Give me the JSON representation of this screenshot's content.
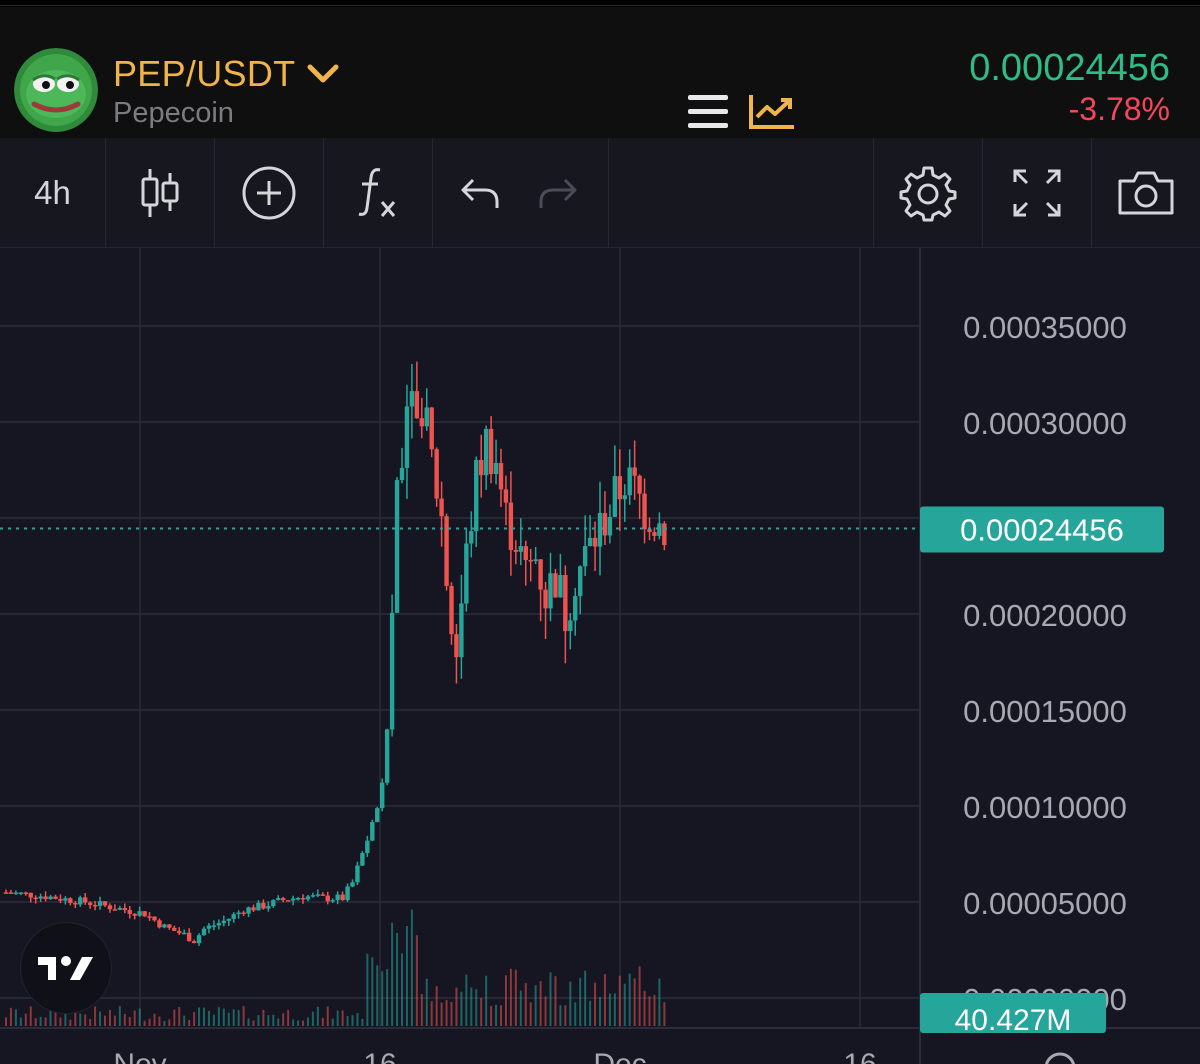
{
  "header": {
    "pair": "PEP/USDT",
    "coin_name": "Pepecoin",
    "last_price": "0.00024456",
    "change_pct": "-3.78%"
  },
  "toolbar": {
    "interval": "4h",
    "icons": [
      "candlestick-icon",
      "add-indicator-icon",
      "function-icon",
      "undo-icon",
      "redo-icon",
      "settings-icon",
      "fullscreen-icon",
      "camera-icon"
    ]
  },
  "colors": {
    "up": "#26a69a",
    "down": "#ef5350",
    "accent": "#f0b44a",
    "price_tag": "#26a69a"
  },
  "chart_data": {
    "type": "candlestick",
    "price_axis": {
      "ticks": [
        "0.00035000",
        "0.00030000",
        "0.00020000",
        "0.00015000",
        "0.00010000",
        "0.00005000",
        "0.00000000"
      ],
      "range": [
        0,
        0.00037
      ],
      "current_price": "0.00024456"
    },
    "volume_label": "40.427M",
    "time_axis_labels": [
      "Nov",
      "16",
      "Dec",
      "16"
    ],
    "grid": true,
    "close_path": [
      [
        0,
        5.5e-05
      ],
      [
        4,
        5.3e-05
      ],
      [
        8,
        5e-05
      ],
      [
        12,
        4.6e-05
      ],
      [
        14,
        4.4e-05
      ],
      [
        16,
        3.7e-05
      ],
      [
        18,
        3.3e-05
      ],
      [
        19,
        3e-05
      ],
      [
        20,
        3.6e-05
      ],
      [
        22,
        4e-05
      ],
      [
        24,
        4.6e-05
      ],
      [
        26,
        4.8e-05
      ],
      [
        28,
        5.1e-05
      ],
      [
        30,
        5.3e-05
      ],
      [
        32,
        5.2e-05
      ],
      [
        34,
        5.2e-05
      ],
      [
        35,
        6e-05
      ],
      [
        36,
        7.5e-05
      ],
      [
        37,
        9e-05
      ],
      [
        38,
        0.00011
      ],
      [
        38.5,
        0.00014
      ],
      [
        39,
        0.0002
      ],
      [
        39.5,
        0.00027
      ],
      [
        40,
        0.00029
      ],
      [
        41,
        0.00033
      ],
      [
        41.5,
        0.0003
      ],
      [
        42,
        0.00031
      ],
      [
        43,
        0.00028
      ],
      [
        44,
        0.00025
      ],
      [
        44.8,
        0.0002
      ],
      [
        45.5,
        0.00018
      ],
      [
        46.5,
        0.00023
      ],
      [
        47.5,
        0.00027
      ],
      [
        48.5,
        0.00029
      ],
      [
        49.5,
        0.00028
      ],
      [
        50.5,
        0.00025
      ],
      [
        51.5,
        0.00024
      ],
      [
        52.5,
        0.00022
      ],
      [
        53.5,
        0.00023
      ],
      [
        54.5,
        0.00021
      ],
      [
        55.5,
        0.00022
      ],
      [
        56.5,
        0.0002
      ],
      [
        57.5,
        0.00022
      ],
      [
        58.5,
        0.00023
      ],
      [
        59.5,
        0.00024
      ],
      [
        60.5,
        0.00025
      ],
      [
        61.5,
        0.00026
      ],
      [
        62.5,
        0.00027
      ],
      [
        63.5,
        0.000265
      ],
      [
        64.5,
        0.000255
      ],
      [
        65.5,
        0.00025
      ],
      [
        66.5,
        0.000245
      ]
    ]
  }
}
